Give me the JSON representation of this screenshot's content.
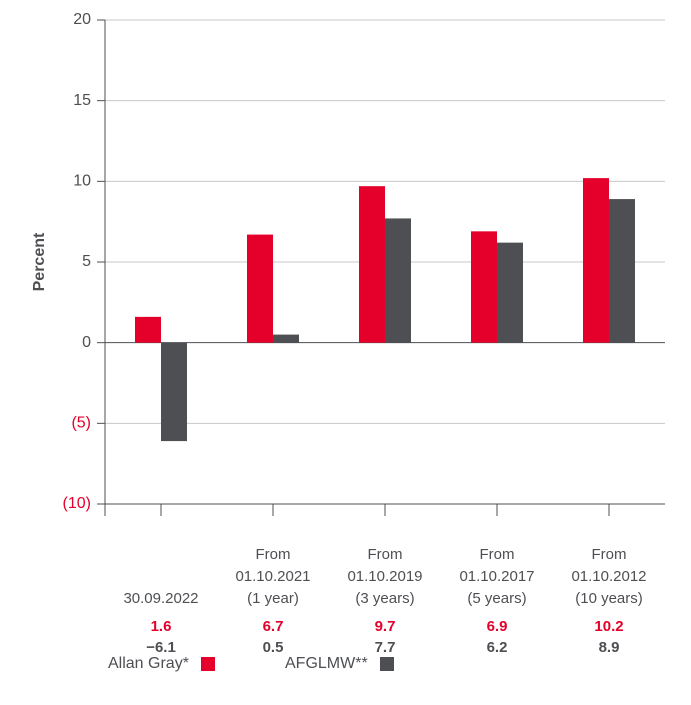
{
  "chart_data": {
    "type": "bar",
    "y_label": "Percent",
    "categories": [
      "30.09.2022",
      "From\n01.10.2021\n(1 year)",
      "From\n01.10.2019\n(3 years)",
      "From\n01.10.2017\n(5 years)",
      "From\n01.10.2012\n(10 years)"
    ],
    "series": [
      {
        "name": "Allan Gray*",
        "color": "#e4002b",
        "values": [
          1.6,
          6.7,
          9.7,
          6.9,
          10.2
        ]
      },
      {
        "name": "AFGLMW**",
        "color": "#4d4f53",
        "values": [
          -6.1,
          0.5,
          7.7,
          6.2,
          8.9
        ],
        "value_labels": [
          "−6.1",
          "0.5",
          "7.7",
          "6.2",
          "8.9"
        ]
      }
    ],
    "ylim": [
      -10,
      20
    ],
    "yticks": [
      {
        "value": -10,
        "label": "(10)"
      },
      {
        "value": -5,
        "label": "(5)"
      },
      0,
      5,
      10,
      15,
      20
    ],
    "negative_tick_color": "#e4002b",
    "grid": true
  }
}
